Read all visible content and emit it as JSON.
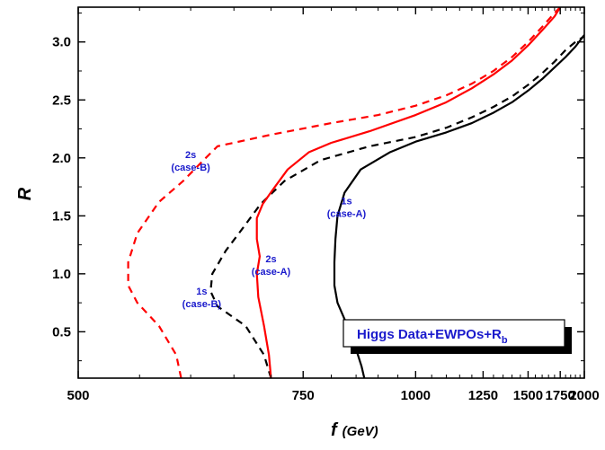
{
  "chart_data": {
    "type": "line",
    "xlabel": "f",
    "xlabel_unit": "(GeV)",
    "ylabel": "R",
    "xlim": [
      500,
      2000
    ],
    "ylim": [
      0.1,
      3.3
    ],
    "x_scale": "reciprocal",
    "grid": false,
    "legend_box": {
      "text": "Higgs Data+EWPOs+R",
      "subscript": "b",
      "placement": "bottom-right"
    },
    "x_ticks": [
      {
        "value": 500,
        "label": "500"
      },
      {
        "value": 750,
        "label": "750"
      },
      {
        "value": 1000,
        "label": "1000"
      },
      {
        "value": 1250,
        "label": "1250"
      },
      {
        "value": 1500,
        "label": "1500"
      },
      {
        "value": 1750,
        "label": "1750"
      },
      {
        "value": 2000,
        "label": "2000"
      }
    ],
    "y_ticks": [
      {
        "value": 0.5,
        "label": "0.5"
      },
      {
        "value": 1.0,
        "label": "1.0"
      },
      {
        "value": 1.5,
        "label": "1.5"
      },
      {
        "value": 2.0,
        "label": "2.0"
      },
      {
        "value": 2.5,
        "label": "2.5"
      },
      {
        "value": 3.0,
        "label": "3.0"
      }
    ],
    "series": [
      {
        "key": "black_solid",
        "color": "#000000",
        "dash": false,
        "points": [
          [
            868,
            0.1
          ],
          [
            862,
            0.2
          ],
          [
            850,
            0.35
          ],
          [
            832,
            0.55
          ],
          [
            812,
            0.75
          ],
          [
            806,
            0.9
          ],
          [
            806,
            1.1
          ],
          [
            808,
            1.3
          ],
          [
            812,
            1.5
          ],
          [
            826,
            1.7
          ],
          [
            860,
            1.9
          ],
          [
            930,
            2.05
          ],
          [
            1000,
            2.14
          ],
          [
            1100,
            2.22
          ],
          [
            1200,
            2.3
          ],
          [
            1300,
            2.39
          ],
          [
            1400,
            2.48
          ],
          [
            1500,
            2.58
          ],
          [
            1600,
            2.68
          ],
          [
            1700,
            2.78
          ],
          [
            1800,
            2.87
          ],
          [
            1900,
            2.96
          ],
          [
            2000,
            3.06
          ]
        ]
      },
      {
        "key": "black_dashed",
        "color": "#000000",
        "dash": true,
        "points": [
          [
            700,
            0.1
          ],
          [
            690,
            0.3
          ],
          [
            665,
            0.55
          ],
          [
            630,
            0.72
          ],
          [
            622,
            0.85
          ],
          [
            624,
            1.0
          ],
          [
            640,
            1.2
          ],
          [
            662,
            1.4
          ],
          [
            685,
            1.6
          ],
          [
            720,
            1.8
          ],
          [
            780,
            1.98
          ],
          [
            880,
            2.1
          ],
          [
            1000,
            2.18
          ],
          [
            1100,
            2.26
          ],
          [
            1200,
            2.35
          ],
          [
            1300,
            2.44
          ],
          [
            1400,
            2.53
          ],
          [
            1500,
            2.63
          ],
          [
            1600,
            2.73
          ],
          [
            1700,
            2.83
          ],
          [
            1800,
            2.93
          ],
          [
            1900,
            3.0
          ],
          [
            2000,
            3.05
          ]
        ]
      },
      {
        "key": "red_solid",
        "color": "#ff0000",
        "dash": false,
        "points": [
          [
            700,
            0.1
          ],
          [
            697,
            0.3
          ],
          [
            690,
            0.55
          ],
          [
            682,
            0.8
          ],
          [
            680,
            1.0
          ],
          [
            684,
            1.15
          ],
          [
            680,
            1.3
          ],
          [
            680,
            1.48
          ],
          [
            688,
            1.6
          ],
          [
            702,
            1.72
          ],
          [
            725,
            1.9
          ],
          [
            760,
            2.05
          ],
          [
            800,
            2.13
          ],
          [
            880,
            2.23
          ],
          [
            1000,
            2.37
          ],
          [
            1100,
            2.48
          ],
          [
            1200,
            2.6
          ],
          [
            1300,
            2.72
          ],
          [
            1400,
            2.84
          ],
          [
            1500,
            2.97
          ],
          [
            1600,
            3.1
          ],
          [
            1700,
            3.22
          ],
          [
            1750,
            3.3
          ]
        ]
      },
      {
        "key": "red_dashed",
        "color": "#ff0000",
        "dash": true,
        "points": [
          [
            590,
            0.1
          ],
          [
            585,
            0.3
          ],
          [
            568,
            0.55
          ],
          [
            548,
            0.75
          ],
          [
            540,
            0.9
          ],
          [
            540,
            1.1
          ],
          [
            548,
            1.35
          ],
          [
            568,
            1.62
          ],
          [
            592,
            1.8
          ],
          [
            614,
            1.98
          ],
          [
            630,
            2.1
          ],
          [
            700,
            2.2
          ],
          [
            800,
            2.3
          ],
          [
            900,
            2.37
          ],
          [
            1000,
            2.45
          ],
          [
            1100,
            2.54
          ],
          [
            1200,
            2.64
          ],
          [
            1300,
            2.75
          ],
          [
            1400,
            2.87
          ],
          [
            1500,
            3.0
          ],
          [
            1600,
            3.13
          ],
          [
            1700,
            3.25
          ],
          [
            1750,
            3.3
          ]
        ]
      }
    ],
    "annotations": [
      {
        "lines": [
          "2s",
          "(case-B)"
        ],
        "x": 600,
        "y": 2.0
      },
      {
        "lines": [
          "1s",
          "(case-A)"
        ],
        "x": 830,
        "y": 1.6
      },
      {
        "lines": [
          "2s",
          "(case-A)"
        ],
        "x": 700,
        "y": 1.1
      },
      {
        "lines": [
          "1s",
          "(case-B)"
        ],
        "x": 612,
        "y": 0.82
      }
    ]
  }
}
